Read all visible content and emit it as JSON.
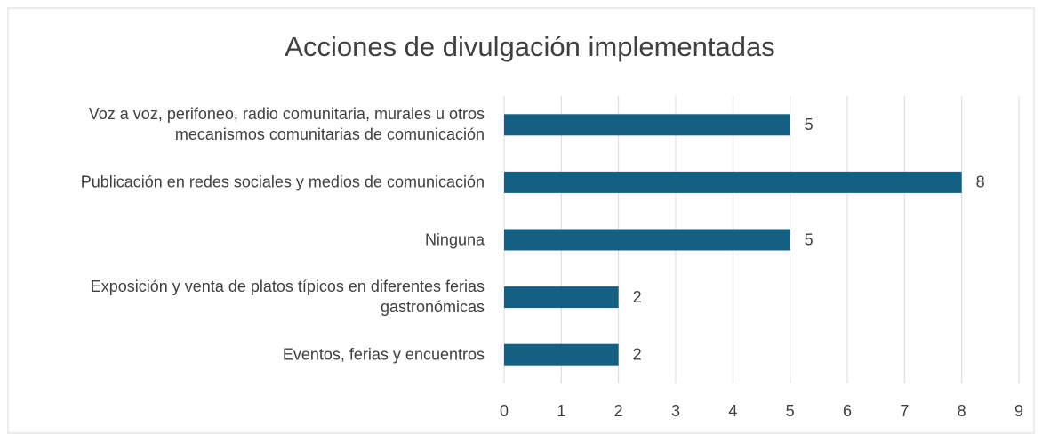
{
  "chart_data": {
    "type": "barh",
    "title": "Acciones de divulgación implementadas",
    "categories": [
      "Voz a voz, perifoneo, radio comunitaria, murales u otros mecanismos comunitarias de comunicación",
      "Publicación en redes sociales y medios de comunicación",
      "Ninguna",
      "Exposición y venta de platos típicos en diferentes ferias gastronómicas",
      "Eventos, ferias y encuentros"
    ],
    "values": [
      5,
      8,
      5,
      2,
      2
    ],
    "color": "#155f82",
    "xlim": [
      0,
      9
    ],
    "xticks": [
      0,
      1,
      2,
      3,
      4,
      5,
      6,
      7,
      8,
      9
    ],
    "grid": true
  }
}
